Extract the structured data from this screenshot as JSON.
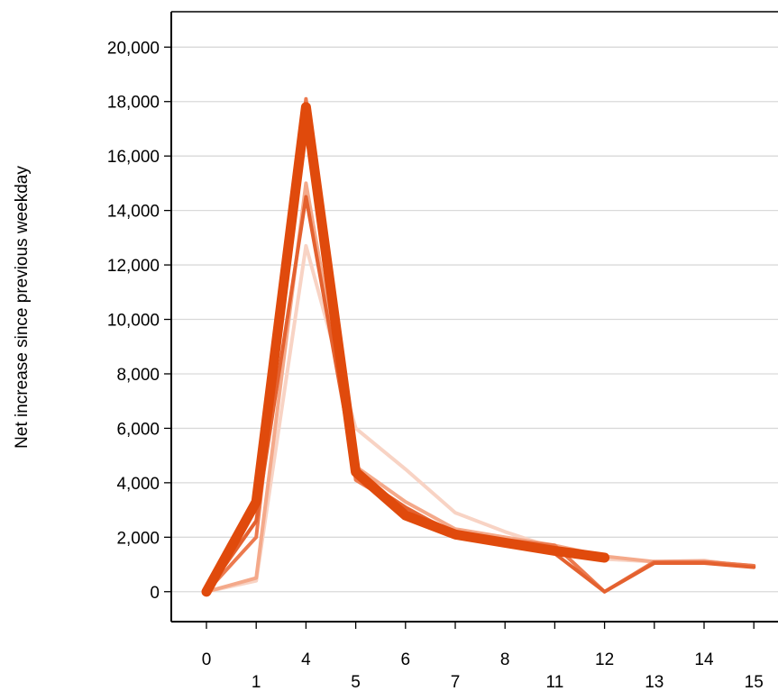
{
  "chart_data": {
    "type": "line",
    "title": "",
    "xlabel": "",
    "ylabel": "Net increase since previous weekday",
    "ylim": [
      -1100,
      21300
    ],
    "grid": true,
    "legend": "none",
    "x_ticks": [
      {
        "label": "0",
        "row": 0
      },
      {
        "label": "1",
        "row": 1
      },
      {
        "label": "4",
        "row": 0
      },
      {
        "label": "5",
        "row": 1
      },
      {
        "label": "6",
        "row": 0
      },
      {
        "label": "7",
        "row": 1
      },
      {
        "label": "8",
        "row": 0
      },
      {
        "label": "11",
        "row": 1
      },
      {
        "label": "12",
        "row": 0
      },
      {
        "label": "13",
        "row": 1
      },
      {
        "label": "14",
        "row": 0
      },
      {
        "label": "15",
        "row": 1
      }
    ],
    "y_ticks": [
      0,
      2000,
      4000,
      6000,
      8000,
      10000,
      12000,
      14000,
      16000,
      18000,
      20000
    ],
    "y_tick_labels": [
      "0",
      "2,000",
      "4,000",
      "6,000",
      "8,000",
      "10,000",
      "12,000",
      "14,000",
      "16,000",
      "18,000",
      "20,000"
    ],
    "series": [
      {
        "color": "#f8d3c4",
        "opacity": 1,
        "width": 4,
        "values": [
          0,
          400,
          12700,
          6000,
          4500,
          2900,
          2200,
          1600,
          1200,
          1100,
          1150,
          900
        ]
      },
      {
        "color": "#f4a98a",
        "opacity": 1,
        "width": 4,
        "values": [
          0,
          500,
          15000,
          4600,
          3300,
          2300,
          2000,
          1700,
          1300,
          1100,
          1100,
          950
        ]
      },
      {
        "color": "#ec7a4f",
        "opacity": 1,
        "width": 4,
        "values": [
          0,
          2000,
          18100,
          4100,
          3000,
          2200,
          1900,
          1700,
          0,
          1100,
          1100,
          950
        ]
      },
      {
        "color": "#e4612f",
        "opacity": 1,
        "width": 4,
        "values": [
          0,
          2600,
          14500,
          4300,
          3100,
          2100,
          1800,
          1400,
          0,
          1050,
          1050,
          900
        ]
      },
      {
        "color": "#e04a0c",
        "opacity": 1,
        "width": 11,
        "values": [
          0,
          3300,
          17800,
          4400,
          2800,
          2100,
          1800,
          1500,
          1250,
          null,
          null,
          null
        ]
      }
    ]
  }
}
